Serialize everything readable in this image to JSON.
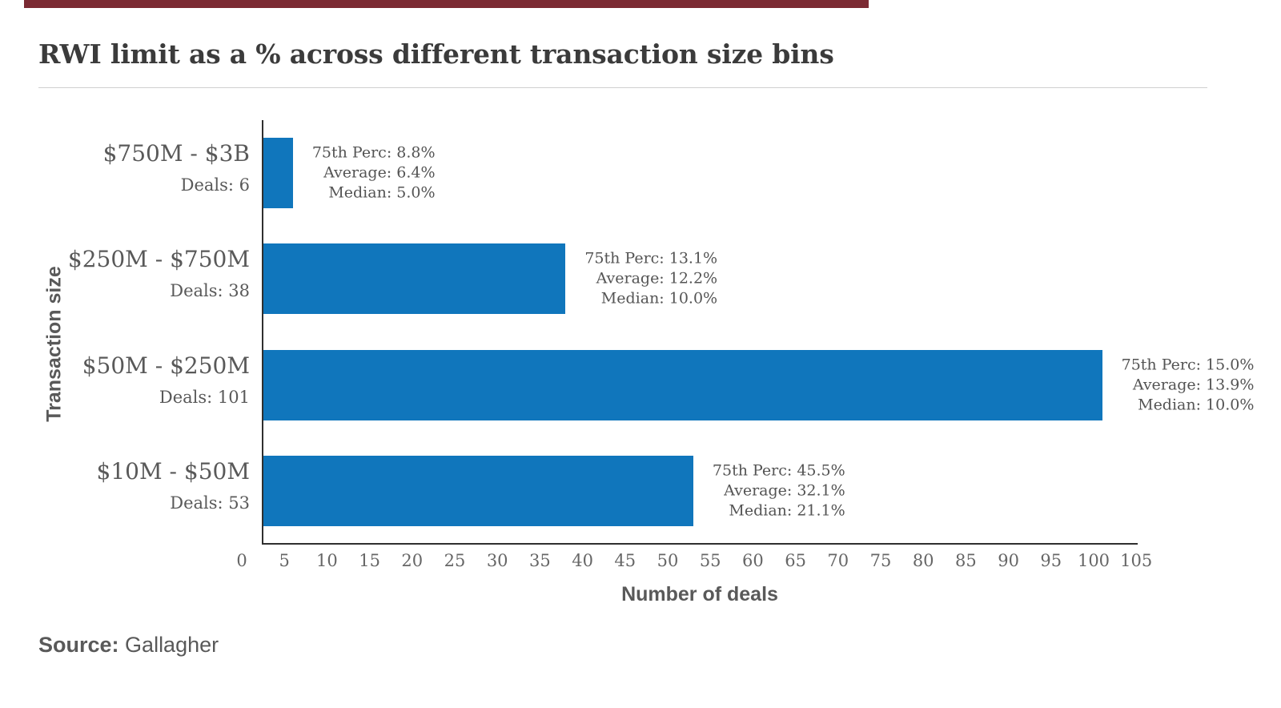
{
  "page": {
    "source_label": "Source:",
    "source_value": "Gallagher",
    "accent_color": "#7b2a33"
  },
  "chart_data": {
    "type": "bar",
    "orientation": "horizontal",
    "title": "RWI limit as a % across different transaction size bins",
    "xlabel": "Number of deals",
    "ylabel": "Transaction size",
    "xlim": [
      0,
      105
    ],
    "xticks": [
      0,
      5,
      10,
      15,
      20,
      25,
      30,
      35,
      40,
      45,
      50,
      55,
      60,
      65,
      70,
      75,
      80,
      85,
      90,
      95,
      100,
      105
    ],
    "grid": false,
    "legend": "none",
    "bar_color": "#1076bc",
    "categories": [
      "$750M - $3B",
      "$250M - $750M",
      "$50M - $250M",
      "$10M - $50M"
    ],
    "values": [
      6,
      38,
      101,
      53
    ],
    "bars": [
      {
        "category": "$750M - $3B",
        "deals": 6,
        "deals_label": "Deals: 6",
        "annotations": [
          "75th Perc: 8.8%",
          "Average: 6.4%",
          "Median: 5.0%"
        ]
      },
      {
        "category": "$250M - $750M",
        "deals": 38,
        "deals_label": "Deals: 38",
        "annotations": [
          "75th Perc: 13.1%",
          "Average: 12.2%",
          "Median: 10.0%"
        ]
      },
      {
        "category": "$50M - $250M",
        "deals": 101,
        "deals_label": "Deals: 101",
        "annotations": [
          "75th Perc: 15.0%",
          "Average: 13.9%",
          "Median: 10.0%"
        ]
      },
      {
        "category": "$10M - $50M",
        "deals": 53,
        "deals_label": "Deals: 53",
        "annotations": [
          "75th Perc: 45.5%",
          "Average: 32.1%",
          "Median: 21.1%"
        ]
      }
    ],
    "source": "Gallagher"
  }
}
